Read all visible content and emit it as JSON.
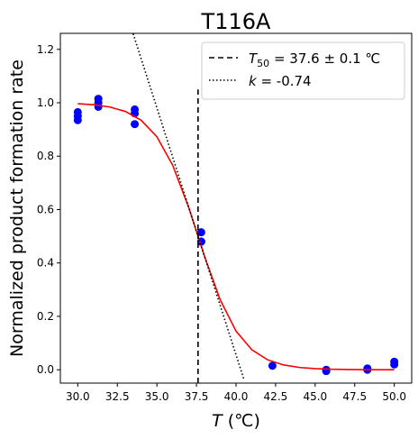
{
  "chart_data": {
    "type": "scatter",
    "title": "T116A",
    "xlabel": [
      "T",
      " (℃)"
    ],
    "ylabel": "Normalized product formation rate",
    "xlim": [
      28.9,
      51.1
    ],
    "ylim": [
      -0.05,
      1.26
    ],
    "xticks": [
      {
        "value": 30,
        "label": "30.0"
      },
      {
        "value": 32.5,
        "label": "32.5"
      },
      {
        "value": 35,
        "label": "35.0"
      },
      {
        "value": 37.5,
        "label": "37.5"
      },
      {
        "value": 40,
        "label": "40.0"
      },
      {
        "value": 42.5,
        "label": "42.5"
      },
      {
        "value": 45,
        "label": "45.0"
      },
      {
        "value": 47.5,
        "label": "47.5"
      },
      {
        "value": 50,
        "label": "50.0"
      }
    ],
    "yticks": [
      {
        "value": 0,
        "label": "0.0"
      },
      {
        "value": 0.2,
        "label": "0.2"
      },
      {
        "value": 0.4,
        "label": "0.4"
      },
      {
        "value": 0.6,
        "label": "0.6"
      },
      {
        "value": 0.8,
        "label": "0.8"
      },
      {
        "value": 1,
        "label": "1.0"
      },
      {
        "value": 1.2,
        "label": "1.2"
      }
    ],
    "legend": "upper right",
    "series": [
      {
        "kind": "scatter",
        "color": "#0000ff",
        "x": [
          30,
          30,
          30,
          31.3,
          31.3,
          31.3,
          33.6,
          33.6,
          33.6,
          37.8,
          37.8,
          37.8,
          42.3,
          45.7,
          45.7,
          48.3,
          48.3,
          50,
          50
        ],
        "values": [
          0.935,
          0.95,
          0.965,
          0.985,
          1.0,
          1.015,
          0.92,
          0.96,
          0.975,
          0.48,
          0.515,
          0.48,
          0.015,
          0.0,
          -0.005,
          0.0,
          0.005,
          0.02,
          0.03
        ]
      },
      {
        "kind": "line",
        "color": "#ff0000",
        "dash": "none",
        "x": [
          30,
          31,
          32,
          33,
          34,
          35,
          36,
          37,
          37.6,
          38,
          39,
          40,
          41,
          42,
          43,
          44,
          45,
          46,
          48,
          50
        ],
        "values": [
          0.9964,
          0.9925,
          0.9844,
          0.9678,
          0.9348,
          0.8726,
          0.7657,
          0.6092,
          0.5,
          0.4266,
          0.2619,
          0.1448,
          0.0747,
          0.0371,
          0.0181,
          0.0087,
          0.0042,
          0.002,
          0.0005,
          0.0001
        ]
      },
      {
        "kind": "line",
        "color": "#000000",
        "dash": "6 4",
        "name": [
          "T",
          "50",
          " = 37.6 ± 0.1 ℃"
        ],
        "x": [
          37.6,
          37.6
        ],
        "values": [
          -0.05,
          1.05
        ]
      },
      {
        "kind": "line",
        "color": "#000000",
        "dash": "1.5 2.5",
        "name": [
          "k",
          " = -0.74"
        ],
        "x": [
          33.5,
          40.5
        ],
        "values": [
          1.2585,
          -0.0365
        ]
      }
    ]
  }
}
